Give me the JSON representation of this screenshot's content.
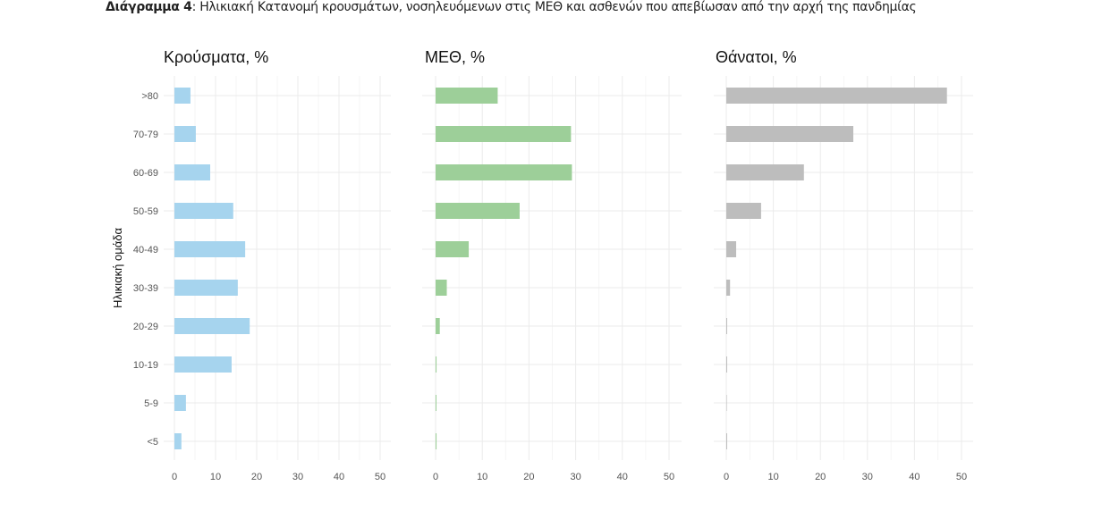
{
  "caption": {
    "label": "Διάγραμμα 4",
    "text": ": Ηλικιακή Κατανομή κρουσμάτων, νοσηλευόμενων στις ΜΕΘ και ασθενών που απεβίωσαν από την αρχή της πανδημίας"
  },
  "chart_data": {
    "type": "bar",
    "orientation": "horizontal",
    "ylabel": "Ηλικιακή ομάδα",
    "categories": [
      ">80",
      "70-79",
      "60-69",
      "50-59",
      "40-49",
      "30-39",
      "20-29",
      "10-19",
      "5-9",
      "<5"
    ],
    "xlim": [
      0,
      50
    ],
    "xticks": [
      0,
      10,
      20,
      30,
      40,
      50
    ],
    "grid": true,
    "panels": [
      {
        "title": "Κρούσματα, %",
        "color": "#a6d4ee",
        "values": [
          3.9,
          5.2,
          8.7,
          14.3,
          17.2,
          15.4,
          18.3,
          13.9,
          2.8,
          1.7
        ]
      },
      {
        "title": "ΜΕΘ, %",
        "color": "#9dcf99",
        "values": [
          13.3,
          29.0,
          29.2,
          18.0,
          7.1,
          2.4,
          0.9,
          0.2,
          0.1,
          0.2
        ]
      },
      {
        "title": "Θάνατοι, %",
        "color": "#bdbdbd",
        "values": [
          46.9,
          27.0,
          16.5,
          7.4,
          2.1,
          0.8,
          0.1,
          0.1,
          0.0,
          0.1
        ]
      }
    ]
  }
}
